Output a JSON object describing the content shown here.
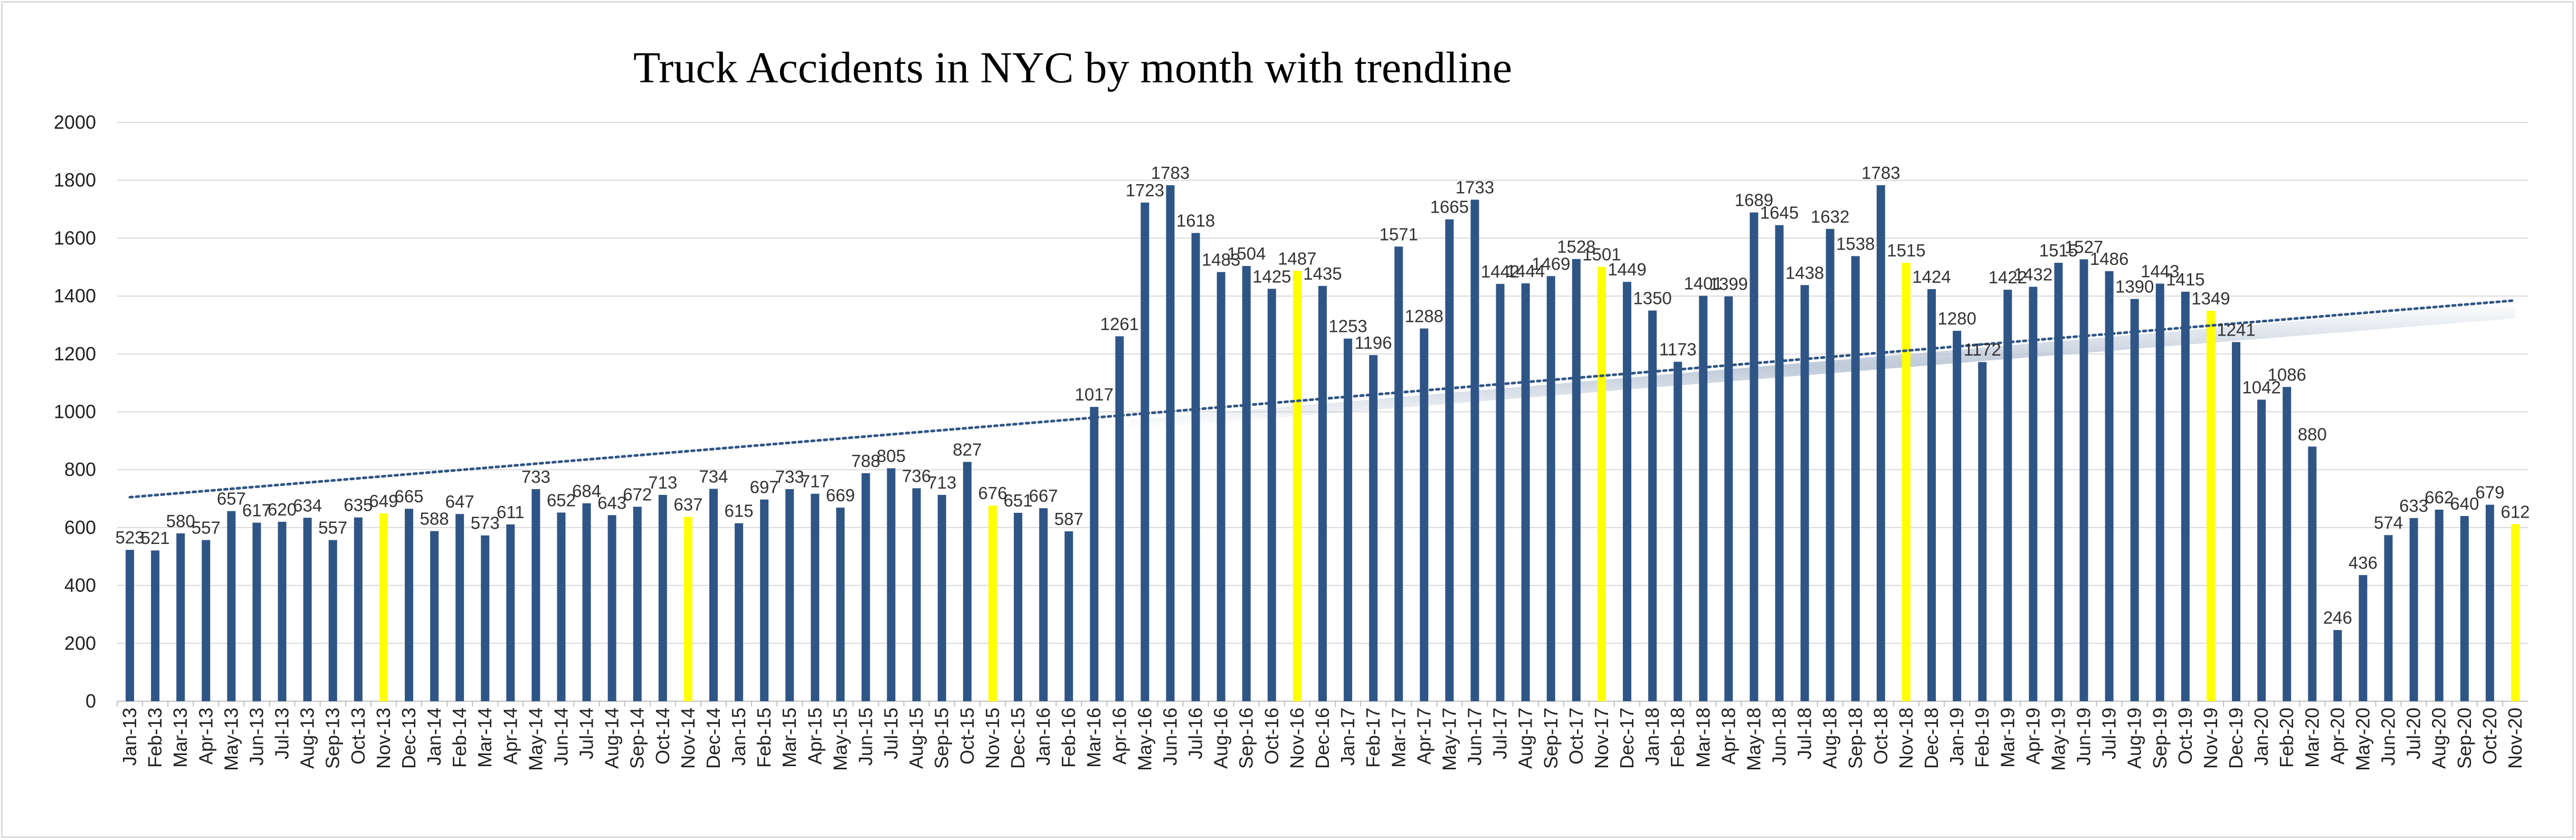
{
  "chart_data": {
    "type": "bar",
    "title": "Truck Accidents in NYC by month with trendline",
    "xlabel": "",
    "ylabel": "",
    "ylim": [
      0,
      2000
    ],
    "yticks": [
      0,
      200,
      400,
      600,
      800,
      1000,
      1200,
      1400,
      1600,
      1800,
      2000
    ],
    "grid": true,
    "legend": "none",
    "colors": {
      "bar": "#2f5586",
      "highlight": "#ffff00",
      "trendline": "#2f5586",
      "grid": "#d9d9d9"
    },
    "highlight_month": "Nov",
    "categories": [
      "Jan-13",
      "Feb-13",
      "Mar-13",
      "Apr-13",
      "May-13",
      "Jun-13",
      "Jul-13",
      "Aug-13",
      "Sep-13",
      "Oct-13",
      "Nov-13",
      "Dec-13",
      "Jan-14",
      "Feb-14",
      "Mar-14",
      "Apr-14",
      "May-14",
      "Jun-14",
      "Jul-14",
      "Aug-14",
      "Sep-14",
      "Oct-14",
      "Nov-14",
      "Dec-14",
      "Jan-15",
      "Feb-15",
      "Mar-15",
      "Apr-15",
      "May-15",
      "Jun-15",
      "Jul-15",
      "Aug-15",
      "Sep-15",
      "Oct-15",
      "Nov-15",
      "Dec-15",
      "Jan-16",
      "Feb-16",
      "Mar-16",
      "Apr-16",
      "May-16",
      "Jun-16",
      "Jul-16",
      "Aug-16",
      "Sep-16",
      "Oct-16",
      "Nov-16",
      "Dec-16",
      "Jan-17",
      "Feb-17",
      "Mar-17",
      "Apr-17",
      "May-17",
      "Jun-17",
      "Jul-17",
      "Aug-17",
      "Sep-17",
      "Oct-17",
      "Nov-17",
      "Dec-17",
      "Jan-18",
      "Feb-18",
      "Mar-18",
      "Apr-18",
      "May-18",
      "Jun-18",
      "Jul-18",
      "Aug-18",
      "Sep-18",
      "Oct-18",
      "Nov-18",
      "Dec-18",
      "Jan-19",
      "Feb-19",
      "Mar-19",
      "Apr-19",
      "May-19",
      "Jun-19",
      "Jul-19",
      "Aug-19",
      "Sep-19",
      "Oct-19",
      "Nov-19",
      "Dec-19",
      "Jan-20",
      "Feb-20",
      "Mar-20",
      "Apr-20",
      "May-20",
      "Jun-20",
      "Jul-20",
      "Aug-20",
      "Sep-20",
      "Oct-20",
      "Nov-20"
    ],
    "values": [
      523,
      521,
      580,
      557,
      657,
      617,
      620,
      634,
      557,
      635,
      649,
      665,
      588,
      647,
      573,
      611,
      733,
      652,
      684,
      643,
      672,
      713,
      637,
      734,
      615,
      697,
      733,
      717,
      669,
      788,
      805,
      736,
      713,
      827,
      676,
      651,
      667,
      587,
      1017,
      1261,
      1723,
      1783,
      1618,
      1483,
      1504,
      1425,
      1487,
      1435,
      1253,
      1196,
      1571,
      1288,
      1665,
      1733,
      1442,
      1444,
      1469,
      1528,
      1501,
      1449,
      1350,
      1173,
      1401,
      1399,
      1689,
      1645,
      1438,
      1632,
      1538,
      1783,
      1515,
      1424,
      1280,
      1172,
      1422,
      1432,
      1515,
      1527,
      1486,
      1390,
      1443,
      1415,
      1349,
      1241,
      1042,
      1086,
      880,
      246,
      436,
      574,
      633,
      662,
      640,
      679,
      612
    ],
    "trendline": {
      "type": "linear",
      "style": "dotted",
      "start_value": 705,
      "end_value": 1385
    }
  }
}
